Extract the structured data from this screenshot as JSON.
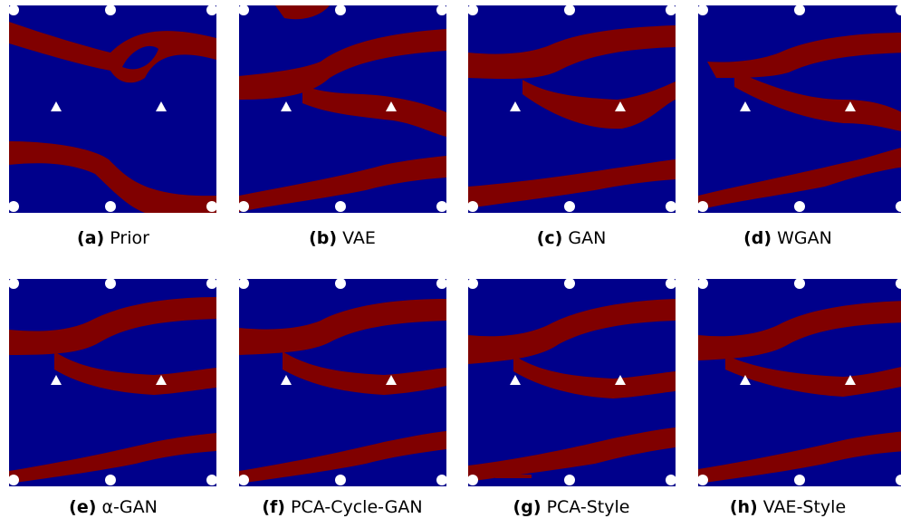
{
  "colors": {
    "background": "#00008b",
    "channel": "#800000",
    "marker": "#ffffff"
  },
  "panels": [
    {
      "tag": "(a)",
      "label": "Prior"
    },
    {
      "tag": "(b)",
      "label": "VAE"
    },
    {
      "tag": "(c)",
      "label": "GAN"
    },
    {
      "tag": "(d)",
      "label": "WGAN"
    },
    {
      "tag": "(e)",
      "label": "α-GAN"
    },
    {
      "tag": "(f)",
      "label": "PCA-Cycle-GAN"
    },
    {
      "tag": "(g)",
      "label": "PCA-Style"
    },
    {
      "tag": "(h)",
      "label": "VAE-Style"
    }
  ],
  "markers": {
    "wells": "circle",
    "sensors": "triangle"
  }
}
